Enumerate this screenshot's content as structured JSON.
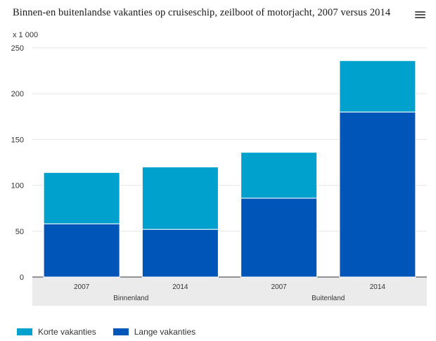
{
  "title": "Binnen-en buitenlandse vakanties op cruiseschip, zeilboot of motorjacht, 2007 versus 2014",
  "menu_icon": "hamburger-menu-icon",
  "chart_data": {
    "type": "bar",
    "stacked": true,
    "unit_label": "x 1 000",
    "categories": [
      "2007",
      "2014",
      "2007",
      "2014"
    ],
    "groups": [
      {
        "label": "Binnenland",
        "categories": [
          "2007",
          "2014"
        ]
      },
      {
        "label": "Buitenland",
        "categories": [
          "2007",
          "2014"
        ]
      }
    ],
    "series": [
      {
        "name": "Lange vakanties",
        "color": "#0055b8",
        "values": [
          58,
          52,
          86,
          180
        ]
      },
      {
        "name": "Korte vakanties",
        "color": "#00a1cd",
        "values": [
          56,
          68,
          50,
          56
        ]
      }
    ],
    "ylim": [
      0,
      250
    ],
    "yticks": [
      "0",
      "50",
      "100",
      "150",
      "200",
      "250"
    ],
    "grid": true,
    "legend_position": "bottom-left",
    "legend": [
      {
        "name": "Korte vakanties",
        "color": "#00a1cd"
      },
      {
        "name": "Lange vakanties",
        "color": "#0055b8"
      }
    ]
  }
}
